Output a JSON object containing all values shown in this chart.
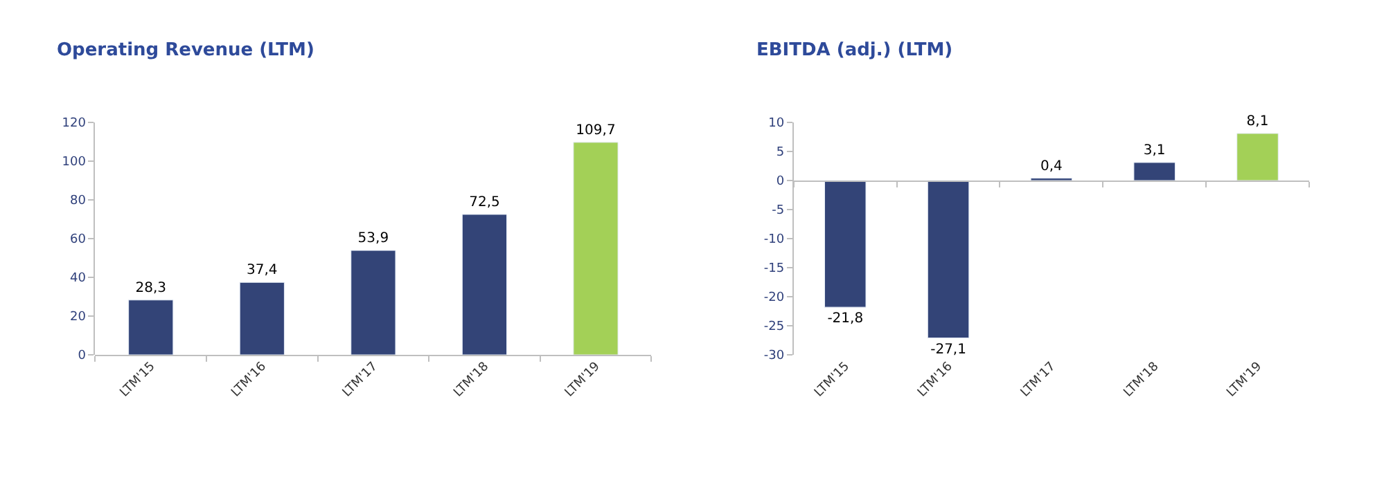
{
  "chart_data": [
    {
      "type": "bar",
      "title": "Operating Revenue (LTM)",
      "categories": [
        "LTM'15",
        "LTM'16",
        "LTM'17",
        "LTM'18",
        "LTM'19"
      ],
      "values": [
        28.3,
        37.4,
        53.9,
        72.5,
        109.7
      ],
      "colors": [
        "#334477",
        "#334477",
        "#334477",
        "#334477",
        "#a3d057"
      ],
      "value_labels": [
        "28,3",
        "37,4",
        "53,9",
        "72,5",
        "109,7"
      ],
      "ylim": [
        0,
        120
      ],
      "yticks": [
        0,
        20,
        40,
        60,
        80,
        100,
        120
      ]
    },
    {
      "type": "bar",
      "title": "EBITDA (adj.) (LTM)",
      "categories": [
        "LTM'15",
        "LTM'16",
        "LTM'17",
        "LTM'18",
        "LTM'19"
      ],
      "values": [
        -21.8,
        -27.1,
        0.4,
        3.1,
        8.1
      ],
      "colors": [
        "#334477",
        "#334477",
        "#334477",
        "#334477",
        "#a3d057"
      ],
      "value_labels": [
        "-21,8",
        "-27,1",
        "0,4",
        "3,1",
        "8,1"
      ],
      "ylim": [
        -30,
        10
      ],
      "yticks": [
        -30,
        -25,
        -20,
        -15,
        -10,
        -5,
        0,
        5,
        10
      ]
    }
  ]
}
